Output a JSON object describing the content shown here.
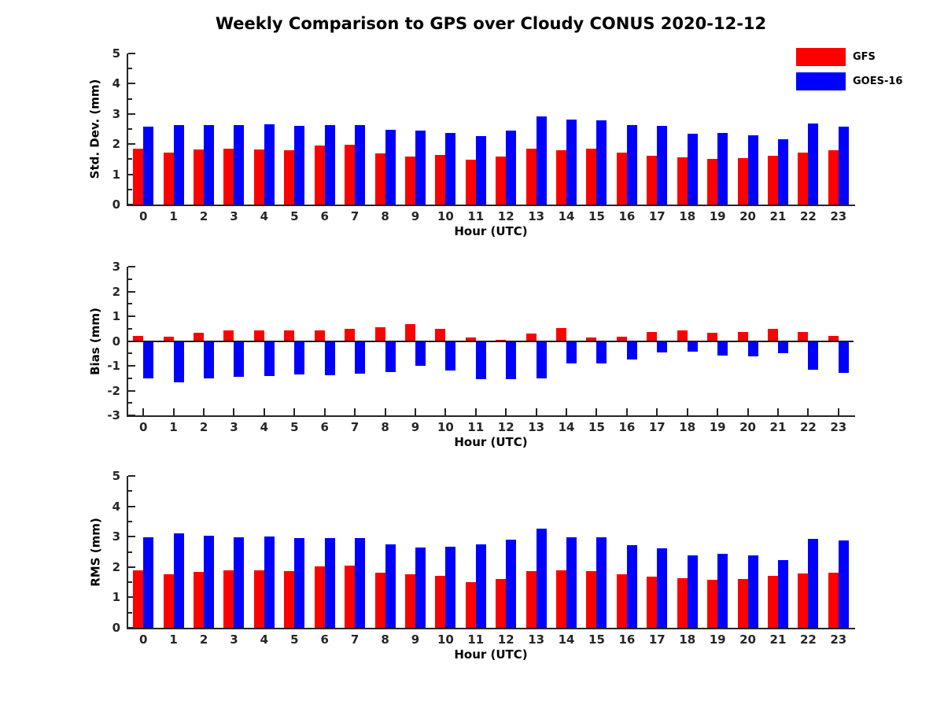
{
  "title": "Weekly Comparison to GPS over Cloudy CONUS 2020-12-12",
  "legend": [
    {
      "label": "GFS",
      "color": "#ff0000"
    },
    {
      "label": "GOES-16",
      "color": "#0000ff"
    }
  ],
  "colors": {
    "gfs": "#ff0000",
    "goes16": "#0000ff",
    "axis": "#262626",
    "text": "#000000",
    "background": "#ffffff"
  },
  "chart_data": [
    {
      "type": "bar",
      "title": "",
      "ylabel": "Std. Dev. (mm)",
      "xlabel": "Hour (UTC)",
      "ylim": [
        0,
        5
      ],
      "ytick_step": 1,
      "yminor_step": 0.5,
      "grid": false,
      "legend_position": "top-right-outside",
      "categories": [
        0,
        1,
        2,
        3,
        4,
        5,
        6,
        7,
        8,
        9,
        10,
        11,
        12,
        13,
        14,
        15,
        16,
        17,
        18,
        19,
        20,
        21,
        22,
        23
      ],
      "series": [
        {
          "name": "GFS",
          "color": "#ff0000",
          "values": [
            1.85,
            1.73,
            1.83,
            1.85,
            1.83,
            1.8,
            1.95,
            1.98,
            1.7,
            1.6,
            1.63,
            1.48,
            1.58,
            1.84,
            1.79,
            1.84,
            1.73,
            1.62,
            1.55,
            1.52,
            1.53,
            1.61,
            1.73,
            1.8
          ]
        },
        {
          "name": "GOES-16",
          "color": "#0000ff",
          "values": [
            2.57,
            2.62,
            2.62,
            2.62,
            2.65,
            2.6,
            2.62,
            2.62,
            2.47,
            2.45,
            2.38,
            2.26,
            2.46,
            2.91,
            2.82,
            2.79,
            2.62,
            2.6,
            2.35,
            2.37,
            2.3,
            2.17,
            2.67,
            2.57
          ]
        }
      ]
    },
    {
      "type": "bar",
      "title": "",
      "ylabel": "Bias (mm)",
      "xlabel": "Hour (UTC)",
      "ylim": [
        -3,
        3
      ],
      "ytick_step": 1,
      "yminor_step": 0.5,
      "grid": false,
      "categories": [
        0,
        1,
        2,
        3,
        4,
        5,
        6,
        7,
        8,
        9,
        10,
        11,
        12,
        13,
        14,
        15,
        16,
        17,
        18,
        19,
        20,
        21,
        22,
        23
      ],
      "series": [
        {
          "name": "GFS",
          "color": "#ff0000",
          "values": [
            0.22,
            0.19,
            0.33,
            0.43,
            0.43,
            0.43,
            0.43,
            0.5,
            0.57,
            0.68,
            0.5,
            0.13,
            0.04,
            0.29,
            0.53,
            0.15,
            0.18,
            0.38,
            0.42,
            0.34,
            0.37,
            0.49,
            0.37,
            0.21
          ]
        },
        {
          "name": "GOES-16",
          "color": "#0000ff",
          "values": [
            -1.5,
            -1.68,
            -1.5,
            -1.44,
            -1.41,
            -1.34,
            -1.37,
            -1.33,
            -1.25,
            -1.0,
            -1.18,
            -1.53,
            -1.55,
            -1.51,
            -0.9,
            -0.92,
            -0.74,
            -0.47,
            -0.42,
            -0.58,
            -0.62,
            -0.48,
            -1.15,
            -1.3
          ]
        }
      ]
    },
    {
      "type": "bar",
      "title": "",
      "ylabel": "RMS (mm)",
      "xlabel": "Hour (UTC)",
      "ylim": [
        0,
        5
      ],
      "ytick_step": 1,
      "yminor_step": 0.5,
      "grid": false,
      "categories": [
        0,
        1,
        2,
        3,
        4,
        5,
        6,
        7,
        8,
        9,
        10,
        11,
        12,
        13,
        14,
        15,
        16,
        17,
        18,
        19,
        20,
        21,
        22,
        23
      ],
      "series": [
        {
          "name": "GFS",
          "color": "#ff0000",
          "values": [
            1.9,
            1.77,
            1.84,
            1.9,
            1.9,
            1.87,
            2.03,
            2.05,
            1.81,
            1.75,
            1.72,
            1.5,
            1.6,
            1.87,
            1.9,
            1.86,
            1.75,
            1.69,
            1.64,
            1.59,
            1.6,
            1.72,
            1.79,
            1.82
          ]
        },
        {
          "name": "GOES-16",
          "color": "#0000ff",
          "values": [
            2.97,
            3.1,
            3.02,
            2.98,
            3.0,
            2.95,
            2.96,
            2.96,
            2.75,
            2.64,
            2.66,
            2.74,
            2.91,
            3.27,
            2.98,
            2.98,
            2.73,
            2.61,
            2.38,
            2.43,
            2.39,
            2.24,
            2.92,
            2.87
          ]
        }
      ]
    }
  ]
}
